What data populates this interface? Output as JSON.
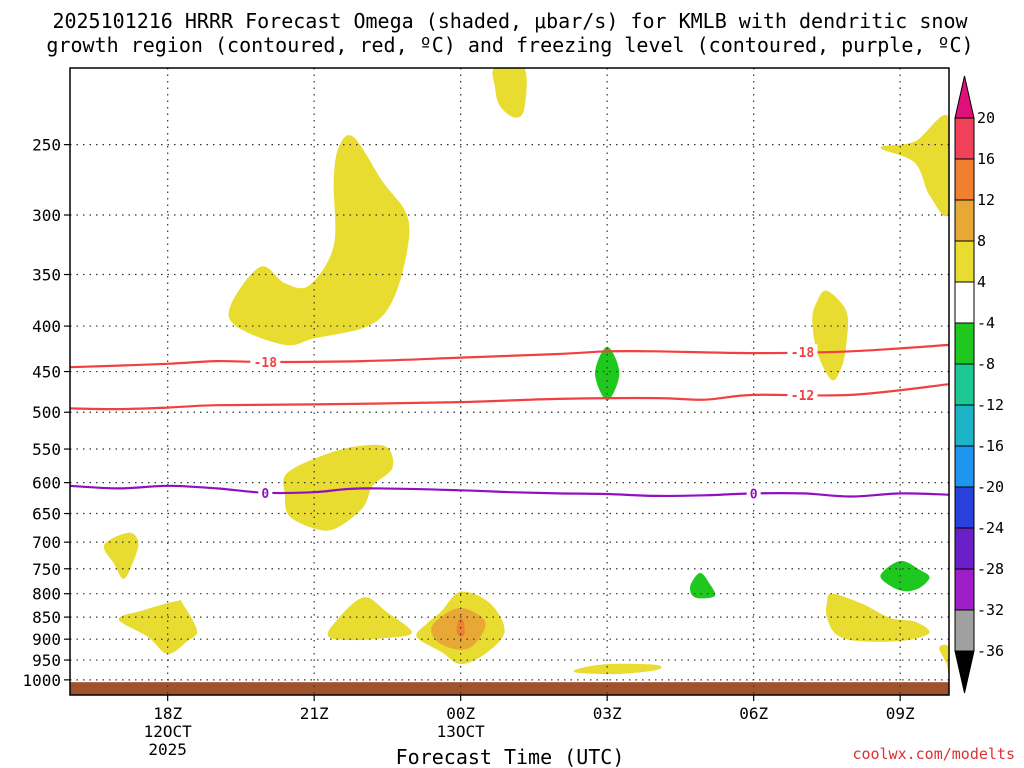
{
  "title": {
    "line1": "2025101216 HRRR Forecast Omega (shaded, μbar/s) for KMLB with dendritic snow",
    "line2": "growth region (contoured, red, ºC) and freezing level (contoured, purple, ºC)"
  },
  "xlabel": "Forecast Time (UTC)",
  "credit": "coolwx.com/modelts",
  "chart_data": {
    "type": "contour",
    "title": "2025101216 HRRR Forecast Omega (shaded, μbar/s) for KMLB with dendritic snow growth region (contoured, red, ºC) and freezing level (contoured, purple, ºC)",
    "xlabel": "Forecast Time (UTC)",
    "ylabel": "",
    "x_ticks": [
      {
        "hour": 2,
        "lines": [
          "18Z",
          "12OCT",
          "2025"
        ]
      },
      {
        "hour": 5,
        "lines": [
          "21Z"
        ]
      },
      {
        "hour": 8,
        "lines": [
          "00Z",
          "13OCT"
        ]
      },
      {
        "hour": 11,
        "lines": [
          "03Z"
        ]
      },
      {
        "hour": 14,
        "lines": [
          "06Z"
        ]
      },
      {
        "hour": 17,
        "lines": [
          "09Z"
        ]
      }
    ],
    "xlim_hours": [
      0,
      18
    ],
    "y_scale": "log",
    "y_axis_inverted": true,
    "ylim": [
      1040,
      205
    ],
    "y_ticks": [
      250,
      300,
      350,
      400,
      450,
      500,
      550,
      600,
      650,
      700,
      750,
      800,
      850,
      900,
      950,
      1000
    ],
    "grid": true,
    "colorbar": {
      "ticks": [
        "20",
        "16",
        "12",
        "8",
        "4",
        "-4",
        "-8",
        "-12",
        "-16",
        "-20",
        "-24",
        "-28",
        "-32",
        "-36"
      ],
      "bins": [
        {
          "range": "16 to 20",
          "color": "#f0405a"
        },
        {
          "range": "12 to 16",
          "color": "#f08030"
        },
        {
          "range": "8 to 12",
          "color": "#e8a836"
        },
        {
          "range": "4 to 8",
          "color": "#e8dc30"
        },
        {
          "range": "-4 to 4",
          "color": "#ffffff"
        },
        {
          "range": "-8 to -4",
          "color": "#1ec81e"
        },
        {
          "range": "-12 to -8",
          "color": "#1ec896"
        },
        {
          "range": "-16 to -12",
          "color": "#1eb4c8"
        },
        {
          "range": "-20 to -16",
          "color": "#1e96f0"
        },
        {
          "range": "-24 to -20",
          "color": "#2840dc"
        },
        {
          "range": "-28 to -24",
          "color": "#6a1ec8"
        },
        {
          "range": "-32 to -28",
          "color": "#a01ec8"
        },
        {
          "range": "-36 to -32",
          "color": "#a0a0a0"
        }
      ],
      "max_arrow_color": "#e0107a",
      "min_arrow_color": "#000000"
    },
    "contours": [
      {
        "value": -18,
        "label": "-18",
        "color": "#f04040",
        "points": [
          [
            0,
            445
          ],
          [
            2,
            441
          ],
          [
            3,
            438
          ],
          [
            4,
            439
          ],
          [
            6,
            438
          ],
          [
            8,
            434
          ],
          [
            10,
            430
          ],
          [
            11,
            427
          ],
          [
            12,
            427
          ],
          [
            14,
            429
          ],
          [
            16,
            427
          ],
          [
            18,
            420
          ]
        ],
        "label_hours": [
          4,
          15
        ]
      },
      {
        "value": -12,
        "label": "-12",
        "color": "#f04040",
        "points": [
          [
            0,
            495
          ],
          [
            1,
            496
          ],
          [
            2,
            494
          ],
          [
            3,
            491
          ],
          [
            5,
            490
          ],
          [
            8,
            487
          ],
          [
            10,
            483
          ],
          [
            12,
            482
          ],
          [
            13,
            484
          ],
          [
            14,
            478
          ],
          [
            16,
            478
          ],
          [
            18,
            465
          ]
        ],
        "label_hours": [
          15
        ]
      },
      {
        "value": 0,
        "label": "0",
        "color": "#9010c0",
        "points": [
          [
            0,
            605
          ],
          [
            1,
            609
          ],
          [
            2,
            605
          ],
          [
            3,
            609
          ],
          [
            4,
            616
          ],
          [
            5,
            615
          ],
          [
            6,
            609
          ],
          [
            8,
            612
          ],
          [
            9,
            615
          ],
          [
            10,
            617
          ],
          [
            11,
            618
          ],
          [
            12,
            621
          ],
          [
            13,
            620
          ],
          [
            14,
            617
          ],
          [
            15,
            617
          ],
          [
            16,
            622
          ],
          [
            17,
            617
          ],
          [
            18,
            619
          ]
        ],
        "label_hours": [
          4,
          14
        ]
      }
    ],
    "omega_regions": [
      {
        "bin": "4 to 8",
        "color": "#e8dc30",
        "points": [
          [
            8.7,
            205
          ],
          [
            9.3,
            205
          ],
          [
            9.3,
            228
          ],
          [
            9.1,
            233
          ],
          [
            8.8,
            226
          ],
          [
            8.7,
            215
          ]
        ]
      },
      {
        "bin": "4 to 8",
        "color": "#e8dc30",
        "points": [
          [
            5.5,
            252
          ],
          [
            5.8,
            245
          ],
          [
            6.4,
            275
          ],
          [
            6.9,
            300
          ],
          [
            6.9,
            330
          ],
          [
            6.6,
            375
          ],
          [
            6.1,
            400
          ],
          [
            5.0,
            413
          ],
          [
            4.4,
            420
          ],
          [
            3.4,
            400
          ],
          [
            3.3,
            378
          ],
          [
            3.9,
            343
          ],
          [
            4.4,
            358
          ],
          [
            4.9,
            360
          ],
          [
            5.4,
            325
          ],
          [
            5.4,
            275
          ]
        ]
      },
      {
        "bin": "4 to 8",
        "color": "#e8dc30",
        "points": [
          [
            17.3,
            248
          ],
          [
            18,
            233
          ],
          [
            18,
            298
          ],
          [
            17.6,
            285
          ],
          [
            17.3,
            262
          ],
          [
            16.6,
            252
          ]
        ]
      },
      {
        "bin": "4 to 8",
        "color": "#e8dc30",
        "points": [
          [
            15.5,
            365
          ],
          [
            15.9,
            385
          ],
          [
            15.9,
            418
          ],
          [
            15.8,
            445
          ],
          [
            15.6,
            460
          ],
          [
            15.3,
            428
          ],
          [
            15.2,
            393
          ],
          [
            15.3,
            375
          ]
        ]
      },
      {
        "bin": "-8 to -4",
        "color": "#1ec81e",
        "points": [
          [
            11,
            422
          ],
          [
            11.25,
            452
          ],
          [
            11,
            485
          ],
          [
            10.75,
            452
          ]
        ]
      },
      {
        "bin": "4 to 8",
        "color": "#e8dc30",
        "points": [
          [
            5.3,
            556
          ],
          [
            6,
            545
          ],
          [
            6.5,
            548
          ],
          [
            6.6,
            578
          ],
          [
            6.2,
            605
          ],
          [
            6,
            640
          ],
          [
            5.5,
            673
          ],
          [
            5.1,
            678
          ],
          [
            4.5,
            655
          ],
          [
            4.4,
            620
          ],
          [
            4.45,
            585
          ]
        ]
      },
      {
        "bin": "4 to 8",
        "color": "#e8dc30",
        "points": [
          [
            1.2,
            683
          ],
          [
            1.4,
            700
          ],
          [
            1.3,
            735
          ],
          [
            1.1,
            770
          ],
          [
            0.9,
            740
          ],
          [
            0.7,
            705
          ]
        ]
      },
      {
        "bin": "-8 to -4",
        "color": "#1ec81e",
        "points": [
          [
            12.9,
            758
          ],
          [
            13.1,
            780
          ],
          [
            13.2,
            805
          ],
          [
            12.8,
            808
          ],
          [
            12.7,
            785
          ]
        ]
      },
      {
        "bin": "-8 to -4",
        "color": "#1ec81e",
        "points": [
          [
            17,
            735
          ],
          [
            17.4,
            752
          ],
          [
            17.6,
            767
          ],
          [
            17.4,
            788
          ],
          [
            17.1,
            795
          ],
          [
            16.8,
            784
          ],
          [
            16.6,
            762
          ]
        ]
      },
      {
        "bin": "4 to 8",
        "color": "#e8dc30",
        "points": [
          [
            1.5,
            835
          ],
          [
            2.2,
            815
          ],
          [
            2.3,
            820
          ],
          [
            2.6,
            880
          ],
          [
            2.4,
            905
          ],
          [
            2.0,
            935
          ],
          [
            1.6,
            895
          ],
          [
            1.0,
            855
          ]
        ]
      },
      {
        "bin": "4 to 8",
        "color": "#e8dc30",
        "points": [
          [
            5.4,
            865
          ],
          [
            6.0,
            808
          ],
          [
            6.5,
            840
          ],
          [
            7.0,
            885
          ],
          [
            6.4,
            898
          ],
          [
            5.7,
            902
          ],
          [
            5.3,
            895
          ]
        ]
      },
      {
        "bin": "4 to 8",
        "color": "#e8dc30",
        "points": [
          [
            7.6,
            838
          ],
          [
            8.0,
            796
          ],
          [
            8.6,
            820
          ],
          [
            8.9,
            882
          ],
          [
            8.5,
            935
          ],
          [
            8.0,
            960
          ],
          [
            7.6,
            930
          ],
          [
            7.1,
            895
          ],
          [
            7.3,
            865
          ]
        ]
      },
      {
        "bin": "8 to 12",
        "color": "#e8a836",
        "points": [
          [
            7.5,
            858
          ],
          [
            8.0,
            830
          ],
          [
            8.5,
            860
          ],
          [
            8.3,
            910
          ],
          [
            8.0,
            925
          ],
          [
            7.6,
            912
          ],
          [
            7.4,
            885
          ]
        ]
      },
      {
        "bin": "12 to 16",
        "color": "#f08030",
        "points": [
          [
            7.95,
            858
          ],
          [
            8.05,
            856
          ],
          [
            8.08,
            885
          ],
          [
            8.0,
            895
          ],
          [
            7.92,
            883
          ]
        ]
      },
      {
        "bin": "4 to 8",
        "color": "#e8dc30",
        "points": [
          [
            15.6,
            800
          ],
          [
            16.2,
            820
          ],
          [
            16.8,
            852
          ],
          [
            17.3,
            860
          ],
          [
            17.6,
            885
          ],
          [
            17.1,
            903
          ],
          [
            16.2,
            905
          ],
          [
            15.7,
            890
          ],
          [
            15.5,
            850
          ],
          [
            15.5,
            820
          ]
        ]
      },
      {
        "bin": "4 to 8",
        "color": "#e8dc30",
        "points": [
          [
            17.8,
            920
          ],
          [
            18,
            920
          ],
          [
            18,
            990
          ],
          [
            17.95,
            960
          ]
        ]
      },
      {
        "bin": "4 to 8",
        "color": "#e8dc30",
        "points": [
          [
            10.4,
            972
          ],
          [
            11,
            960
          ],
          [
            12.0,
            962
          ],
          [
            12.0,
            975
          ],
          [
            11.2,
            985
          ],
          [
            10.4,
            982
          ]
        ]
      }
    ],
    "surface_fill": {
      "color": "#a0522d",
      "from_pressure": 1006
    }
  }
}
